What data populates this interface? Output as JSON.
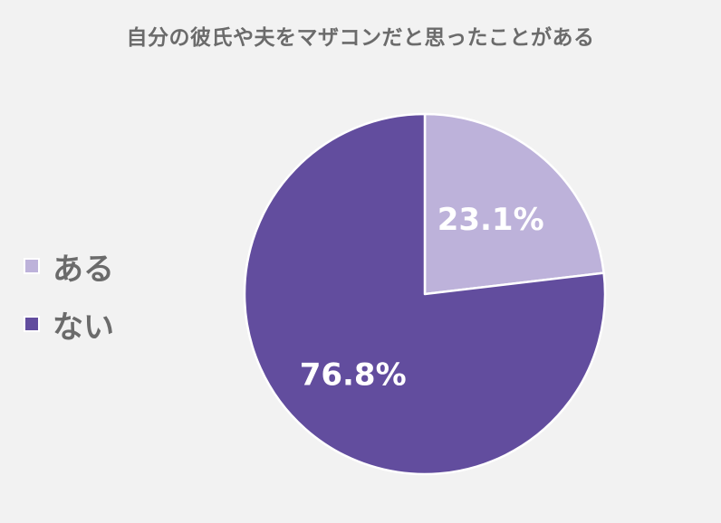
{
  "chart_data": {
    "type": "pie",
    "title": "自分の彼氏や夫をマザコンだと思ったことがある",
    "slices": [
      {
        "label": "ある",
        "value": 23.1,
        "display": "23.1%",
        "color": "#bdb2da"
      },
      {
        "label": "ない",
        "value": 76.8,
        "display": "76.8%",
        "color": "#624d9e"
      }
    ],
    "start_angle_deg": 0,
    "direction": "clockwise",
    "legend_position": "left"
  }
}
